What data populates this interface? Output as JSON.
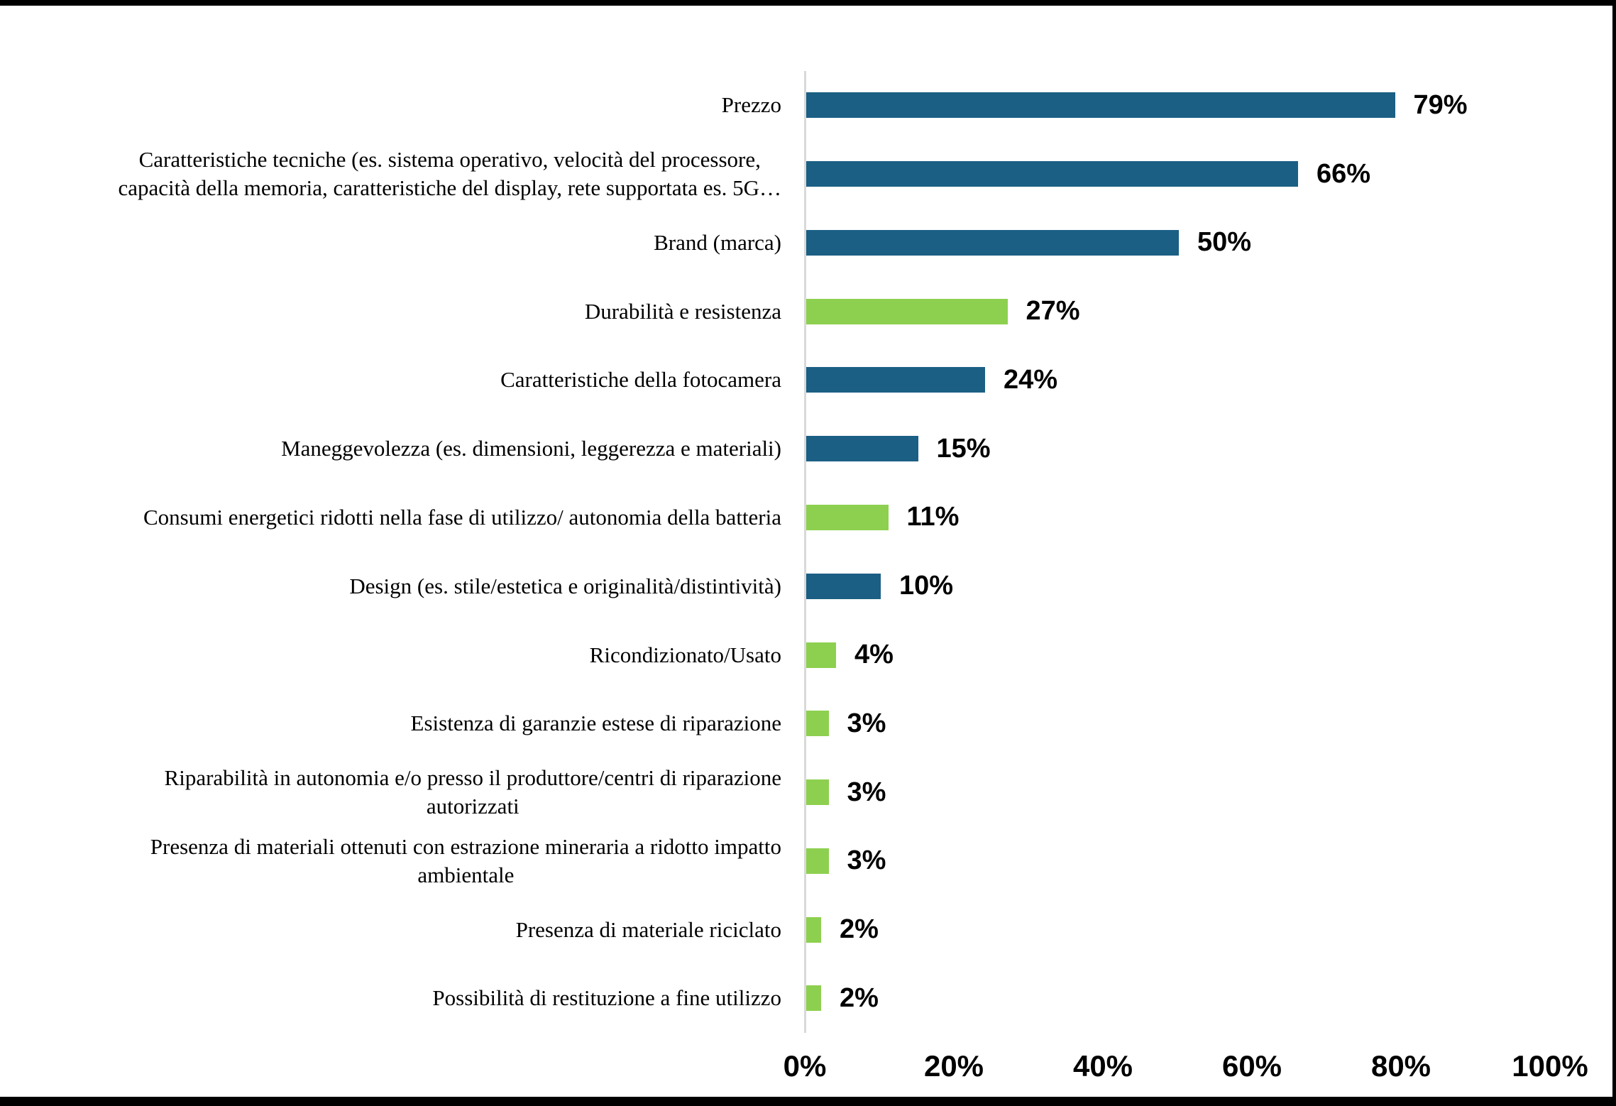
{
  "chart_data": {
    "type": "bar",
    "orientation": "horizontal",
    "title": "",
    "xlabel": "",
    "ylabel": "",
    "xlim": [
      0,
      100
    ],
    "grid": false,
    "legend": "none",
    "x_axis_ticks": [
      {
        "value": 0,
        "label": "0%"
      },
      {
        "value": 20,
        "label": "20%"
      },
      {
        "value": 40,
        "label": "40%"
      },
      {
        "value": 60,
        "label": "60%"
      },
      {
        "value": 80,
        "label": "80%"
      },
      {
        "value": 100,
        "label": "100%"
      }
    ],
    "colors": {
      "blue": "#1B5F84",
      "green": "#8DD04F",
      "axis_line": "#D9D9D9",
      "text": "#000000",
      "frame_edge": "#000000"
    },
    "bars": [
      {
        "label": "Prezzo",
        "value": 79,
        "value_label": "79%",
        "color": "blue"
      },
      {
        "label": "Caratteristiche tecniche (es. sistema operativo, velocità del processore,\ncapacità della memoria, caratteristiche del display, rete supportata es. 5G…",
        "value": 66,
        "value_label": "66%",
        "color": "blue"
      },
      {
        "label": "Brand (marca)",
        "value": 50,
        "value_label": "50%",
        "color": "blue"
      },
      {
        "label": "Durabilità e resistenza",
        "value": 27,
        "value_label": "27%",
        "color": "green"
      },
      {
        "label": "Caratteristiche della fotocamera",
        "value": 24,
        "value_label": "24%",
        "color": "blue"
      },
      {
        "label": "Maneggevolezza (es. dimensioni, leggerezza e materiali)",
        "value": 15,
        "value_label": "15%",
        "color": "blue"
      },
      {
        "label": "Consumi energetici ridotti nella fase di utilizzo/ autonomia della batteria",
        "value": 11,
        "value_label": "11%",
        "color": "green"
      },
      {
        "label": "Design (es. stile/estetica e originalità/distintività)",
        "value": 10,
        "value_label": "10%",
        "color": "blue"
      },
      {
        "label": "Ricondizionato/Usato",
        "value": 4,
        "value_label": "4%",
        "color": "green"
      },
      {
        "label": "Esistenza di garanzie estese di riparazione",
        "value": 3,
        "value_label": "3%",
        "color": "green"
      },
      {
        "label": "Riparabilità in autonomia e/o presso il produttore/centri di riparazione\nautorizzati",
        "value": 3,
        "value_label": "3%",
        "color": "green"
      },
      {
        "label": "Presenza di materiali ottenuti con estrazione mineraria a ridotto impatto\nambientale",
        "value": 3,
        "value_label": "3%",
        "color": "green"
      },
      {
        "label": "Presenza di materiale riciclato",
        "value": 2,
        "value_label": "2%",
        "color": "green"
      },
      {
        "label": "Possibilità di restituzione a fine utilizzo",
        "value": 2,
        "value_label": "2%",
        "color": "green"
      }
    ]
  }
}
